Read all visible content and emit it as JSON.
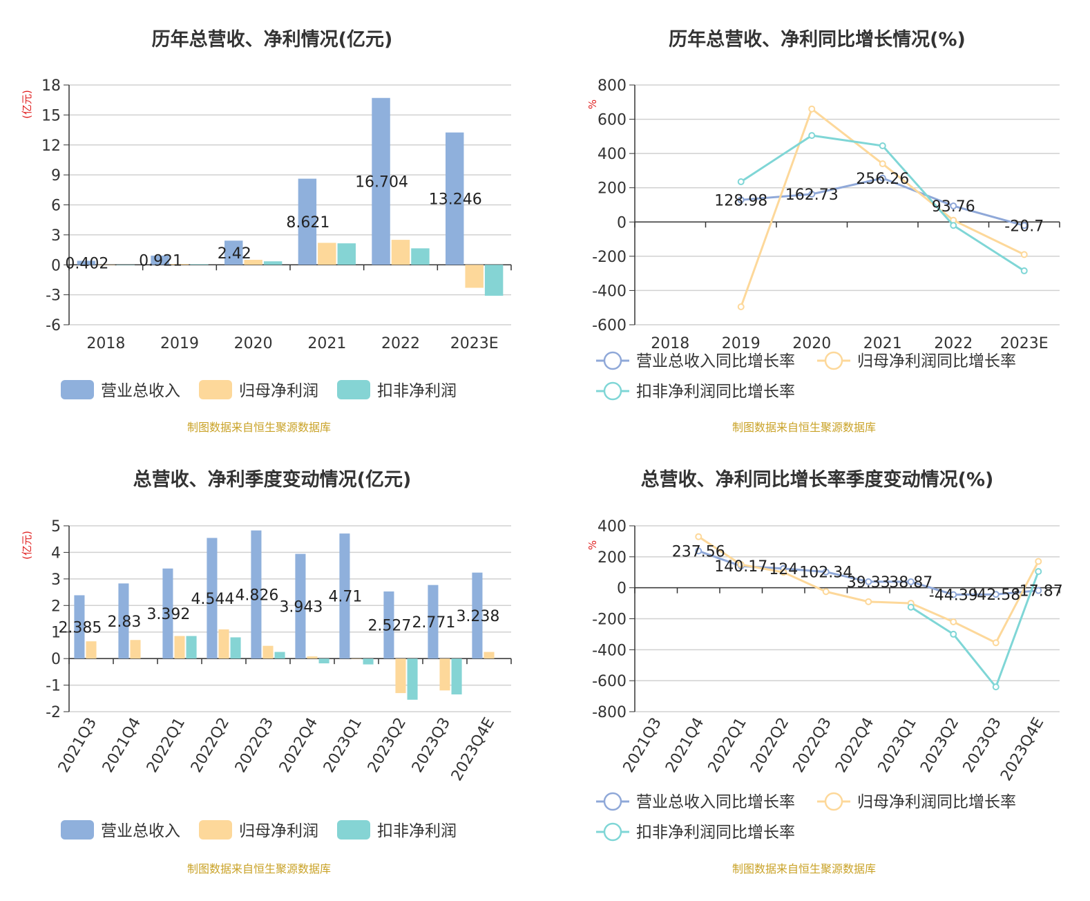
{
  "source_note": "制图数据来自恒生聚源数据库",
  "legend_icon_names": [
    "bar-legend-swatch",
    "line-legend-circle"
  ],
  "chart_data": [
    {
      "type": "bar",
      "title": "历年总营收、净利情况(亿元)",
      "ylabel": "(亿元)",
      "ylim": [
        -6,
        18
      ],
      "yticks": [
        -6,
        -3,
        0,
        3,
        6,
        9,
        12,
        15,
        18
      ],
      "grid": true,
      "legend_position": "bottom",
      "categories": [
        "2018",
        "2019",
        "2020",
        "2021",
        "2022",
        "2023E"
      ],
      "series": [
        {
          "name": "营业总收入",
          "color": "#8fb0dc",
          "values": [
            0.402,
            0.921,
            2.42,
            8.621,
            16.704,
            13.246
          ]
        },
        {
          "name": "归母净利润",
          "color": "#fdd89a",
          "values": [
            0.02,
            0.08,
            0.5,
            2.2,
            2.5,
            -2.3
          ]
        },
        {
          "name": "扣非净利润",
          "color": "#85d4d4",
          "values": [
            0.01,
            0.06,
            0.35,
            2.15,
            1.65,
            -3.1
          ]
        }
      ],
      "data_labels": [
        "0.402",
        "0.921",
        "2.42",
        "8.621",
        "16.704",
        "13.246"
      ]
    },
    {
      "type": "line",
      "title": "历年总营收、净利同比增长情况(%)",
      "ylabel": "%",
      "ylim": [
        -600,
        800
      ],
      "yticks": [
        -600,
        -400,
        -200,
        0,
        200,
        400,
        600,
        800
      ],
      "grid": true,
      "legend_position": "bottom",
      "categories": [
        "2018",
        "2019",
        "2020",
        "2021",
        "2022",
        "2023E"
      ],
      "series": [
        {
          "name": "营业总收入同比增长率",
          "color": "#8fa8d8",
          "values": [
            null,
            128.98,
            162.73,
            256.26,
            93.76,
            -20.7
          ]
        },
        {
          "name": "归母净利润同比增长率",
          "color": "#fdd89a",
          "values": [
            null,
            -495,
            660,
            340,
            10,
            -190
          ]
        },
        {
          "name": "扣非净利润同比增长率",
          "color": "#7fd6d6",
          "values": [
            null,
            235,
            505,
            445,
            -20,
            -285
          ]
        }
      ],
      "data_labels": [
        "",
        "128.98",
        "162.73",
        "256.26",
        "93.76",
        "-20.7"
      ]
    },
    {
      "type": "bar",
      "title": "总营收、净利季度变动情况(亿元)",
      "ylabel": "(亿元)",
      "ylim": [
        -2,
        5
      ],
      "yticks": [
        -2,
        -1,
        0,
        1,
        2,
        3,
        4,
        5
      ],
      "grid": true,
      "legend_position": "bottom",
      "categories": [
        "2021Q3",
        "2021Q4",
        "2022Q1",
        "2022Q2",
        "2022Q3",
        "2022Q4",
        "2023Q1",
        "2023Q2",
        "2023Q3",
        "2023Q4E"
      ],
      "series": [
        {
          "name": "营业总收入",
          "color": "#8fb0dc",
          "values": [
            2.385,
            2.83,
            3.392,
            4.544,
            4.826,
            3.943,
            4.71,
            2.527,
            2.771,
            3.238
          ]
        },
        {
          "name": "归母净利润",
          "color": "#fdd89a",
          "values": [
            0.65,
            0.7,
            0.85,
            1.1,
            0.48,
            0.08,
            0.0,
            -1.3,
            -1.2,
            0.25
          ]
        },
        {
          "name": "扣非净利润",
          "color": "#85d4d4",
          "values": [
            null,
            null,
            0.85,
            0.8,
            0.25,
            -0.18,
            -0.22,
            -1.55,
            -1.35,
            null
          ]
        }
      ],
      "data_labels": [
        "2.385",
        "2.83",
        "3.392",
        "4.544",
        "4.826",
        "3.943",
        "4.71",
        "2.527",
        "2.771",
        "3.238"
      ]
    },
    {
      "type": "line",
      "title": "总营收、净利同比增长率季度变动情况(%)",
      "ylabel": "%",
      "ylim": [
        -800,
        400
      ],
      "yticks": [
        -800,
        -600,
        -400,
        -200,
        0,
        200,
        400
      ],
      "grid": true,
      "legend_position": "bottom",
      "categories": [
        "2021Q3",
        "2021Q4",
        "2022Q1",
        "2022Q2",
        "2022Q3",
        "2022Q4",
        "2023Q1",
        "2023Q2",
        "2023Q3",
        "2023Q4E"
      ],
      "series": [
        {
          "name": "营业总收入同比增长率",
          "color": "#8fa8d8",
          "values": [
            null,
            237.56,
            140.17,
            124,
            102.34,
            39.33,
            38.87,
            -44.39,
            -42.58,
            -17.87
          ]
        },
        {
          "name": "归母净利润同比增长率",
          "color": "#fdd89a",
          "values": [
            null,
            330,
            150,
            100,
            -25,
            -90,
            -100,
            -220,
            -355,
            170
          ]
        },
        {
          "name": "扣非净利润同比增长率",
          "color": "#7fd6d6",
          "values": [
            null,
            null,
            null,
            null,
            null,
            null,
            -125,
            -300,
            -640,
            105
          ]
        }
      ],
      "data_labels": [
        "",
        "237.56",
        "140.17",
        "124",
        "102.34",
        "39.33",
        "38.87",
        "-44.39",
        "-42.58",
        "-17.87"
      ]
    }
  ]
}
